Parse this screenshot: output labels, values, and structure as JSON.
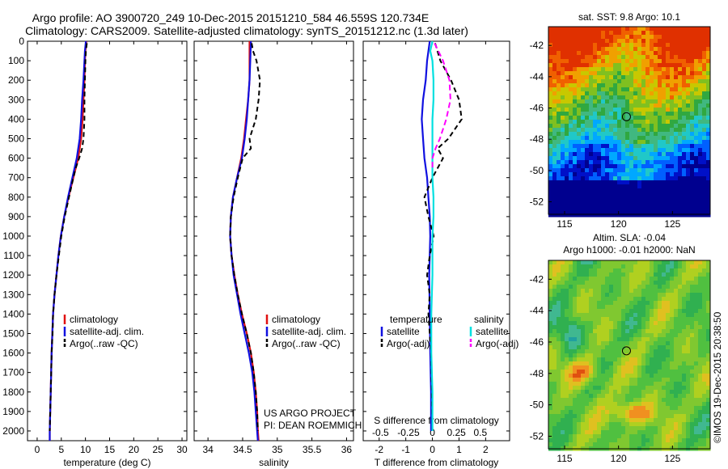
{
  "header": {
    "line1": "Argo profile: AO 3900720_249 10-Dec-2015 20151210_584 46.559S 120.734E",
    "line2": "Climatology: CARS2009. Satellite-adjusted climatology: synTS_20151212.nc (1.3d later)"
  },
  "watermark": "©IMOS 19-Dec-2015 20:38:50",
  "project": {
    "line1": "US ARGO PROJECT",
    "line2": "PI: DEAN ROEMMICH"
  },
  "colors": {
    "climatology": "#e01010",
    "satellite": "#1010e0",
    "argo": "#000000",
    "sat_salinity": "#00e0e0",
    "argo_salinity": "#ff00ff"
  },
  "chart_data": [
    {
      "type": "line",
      "xlabel": "temperature (deg C)",
      "ylabel": "",
      "xlim": [
        -2,
        31
      ],
      "ylim": [
        2050,
        0
      ],
      "xticks": [
        0,
        5,
        10,
        15,
        20,
        25,
        30
      ],
      "yticks": [
        0,
        100,
        200,
        300,
        400,
        500,
        600,
        700,
        800,
        900,
        1000,
        1100,
        1200,
        1300,
        1400,
        1500,
        1600,
        1700,
        1800,
        1900,
        2000
      ],
      "legend_position": "lower-middle",
      "series": [
        {
          "name": "climatology",
          "color": "#e01010",
          "style": "solid",
          "depth": [
            0,
            50,
            100,
            200,
            300,
            400,
            500,
            600,
            700,
            800,
            900,
            1000,
            1100,
            1200,
            1300,
            1400,
            1600,
            1800,
            2000,
            2050
          ],
          "values": [
            10.2,
            10.0,
            9.9,
            9.8,
            9.6,
            9.4,
            9.1,
            8.5,
            7.5,
            6.5,
            5.6,
            4.9,
            4.4,
            4.0,
            3.6,
            3.3,
            3.0,
            2.8,
            2.6,
            2.6
          ]
        },
        {
          "name": "satellite-adj. clim.",
          "color": "#1010e0",
          "style": "solid",
          "depth": [
            0,
            50,
            100,
            200,
            300,
            400,
            500,
            600,
            700,
            800,
            900,
            1000,
            1100,
            1200,
            1300,
            1400,
            1600,
            1800,
            2000,
            2050
          ],
          "values": [
            10.1,
            9.9,
            9.8,
            9.6,
            9.3,
            9.1,
            8.8,
            8.2,
            7.3,
            6.4,
            5.6,
            4.9,
            4.4,
            4.0,
            3.6,
            3.3,
            3.0,
            2.8,
            2.6,
            2.6
          ]
        },
        {
          "name": "Argo(..raw -QC)",
          "color": "#000000",
          "style": "dashed",
          "depth": [
            10,
            50,
            100,
            200,
            300,
            400,
            500,
            550,
            600,
            650,
            700,
            800,
            900,
            1000,
            1100,
            1200,
            1300,
            1400,
            1500,
            1600,
            1700,
            1800,
            1900,
            2000
          ],
          "values": [
            10.3,
            10.1,
            10.0,
            9.9,
            9.8,
            9.8,
            9.6,
            9.3,
            8.7,
            8.0,
            7.5,
            6.6,
            5.7,
            5.0,
            4.5,
            4.0,
            3.6,
            3.3,
            3.2,
            3.0,
            2.9,
            2.8,
            2.7,
            2.6
          ]
        }
      ]
    },
    {
      "type": "line",
      "xlabel": "salinity",
      "ylabel": "",
      "xlim": [
        33.8,
        36.1
      ],
      "ylim": [
        2050,
        0
      ],
      "xticks": [
        34,
        34.5,
        35,
        35.5,
        36
      ],
      "legend_position": "lower-middle",
      "series": [
        {
          "name": "climatology",
          "color": "#e01010",
          "style": "solid",
          "depth": [
            0,
            100,
            200,
            300,
            400,
            500,
            600,
            700,
            800,
            900,
            1000,
            1100,
            1200,
            1300,
            1400,
            1500,
            1600,
            1700,
            1800,
            1900,
            2000,
            2050
          ],
          "values": [
            34.6,
            34.6,
            34.6,
            34.58,
            34.55,
            34.52,
            34.48,
            34.42,
            34.36,
            34.33,
            34.32,
            34.34,
            34.38,
            34.43,
            34.49,
            34.56,
            34.62,
            34.66,
            34.69,
            34.71,
            34.72,
            34.73
          ]
        },
        {
          "name": "satellite-adj. clim.",
          "color": "#1010e0",
          "style": "solid",
          "depth": [
            0,
            100,
            200,
            300,
            400,
            500,
            600,
            700,
            800,
            900,
            1000,
            1100,
            1200,
            1300,
            1400,
            1500,
            1600,
            1700,
            1800,
            1900,
            2000,
            2050
          ],
          "values": [
            34.62,
            34.61,
            34.6,
            34.58,
            34.56,
            34.53,
            34.49,
            34.42,
            34.36,
            34.33,
            34.32,
            34.34,
            34.37,
            34.42,
            34.47,
            34.53,
            34.59,
            34.64,
            34.67,
            34.69,
            34.71,
            34.72
          ]
        },
        {
          "name": "Argo(..raw -QC)",
          "color": "#000000",
          "style": "dashed",
          "depth": [
            10,
            50,
            100,
            200,
            300,
            400,
            500,
            550,
            600,
            700,
            800,
            900,
            1000,
            1100,
            1200,
            1300,
            1400,
            1500,
            1600,
            1700,
            1800,
            1900,
            2000
          ],
          "values": [
            34.63,
            34.65,
            34.7,
            34.75,
            34.73,
            34.69,
            34.6,
            34.62,
            34.5,
            34.43,
            34.37,
            34.33,
            34.32,
            34.34,
            34.38,
            34.43,
            34.49,
            34.56,
            34.62,
            34.66,
            34.69,
            34.71,
            34.72
          ]
        }
      ]
    },
    {
      "type": "line",
      "xlabel": "T difference from climatology",
      "xlabel_top": "S difference from climatology",
      "ylabel": "",
      "xlim": [
        -2.6,
        2.9
      ],
      "ylim": [
        2050,
        0
      ],
      "xticks": [
        -2,
        -1,
        0,
        1,
        2
      ],
      "xticks_top": [
        -0.5,
        -0.25,
        0,
        0.25,
        0.5
      ],
      "legend_position": "lower-middle",
      "legend_groups": [
        "temperature",
        "salinity"
      ],
      "series": [
        {
          "name": "satellite",
          "group": "temperature",
          "color": "#1010e0",
          "style": "solid",
          "depth": [
            0,
            100,
            200,
            300,
            400,
            500,
            600,
            700,
            800,
            900,
            1000,
            1200,
            1400,
            1600,
            1800,
            2000
          ],
          "values": [
            -0.1,
            -0.2,
            -0.25,
            -0.35,
            -0.4,
            -0.35,
            -0.3,
            -0.2,
            -0.15,
            -0.1,
            -0.08,
            -0.12,
            -0.1,
            -0.08,
            -0.05,
            -0.05
          ]
        },
        {
          "name": "Argo(-adj)",
          "group": "temperature",
          "color": "#000000",
          "style": "dashed",
          "depth": [
            10,
            100,
            200,
            300,
            400,
            500,
            550,
            600,
            700,
            800,
            900,
            1000,
            1100,
            1200,
            1300,
            1400,
            1500,
            1600,
            1800,
            2000
          ],
          "values": [
            0.1,
            0.3,
            0.7,
            1.0,
            1.1,
            0.6,
            0.2,
            0.4,
            0.0,
            -0.3,
            -0.15,
            0.05,
            -0.1,
            -0.2,
            -0.1,
            -0.15,
            -0.1,
            -0.05,
            -0.02,
            0.0
          ]
        },
        {
          "name": "satellite",
          "group": "salinity",
          "color": "#00e0e0",
          "style": "solid",
          "depth": [
            0,
            50,
            100,
            200,
            300,
            400,
            500,
            600,
            700,
            800,
            900,
            1000,
            1200,
            1400,
            1600,
            1800,
            2000
          ],
          "values": [
            0.0,
            -0.02,
            0.0,
            0.01,
            0.01,
            0.0,
            0.0,
            0.0,
            0.0,
            0.01,
            0.01,
            0.0,
            0.0,
            -0.01,
            -0.01,
            0.0,
            0.0
          ]
        },
        {
          "name": "Argo(-adj)",
          "group": "salinity",
          "color": "#ff00ff",
          "style": "dashed",
          "depth": [
            10,
            100,
            200,
            300,
            400,
            500,
            550,
            600,
            650
          ],
          "values": [
            0.02,
            0.1,
            0.16,
            0.17,
            0.13,
            0.07,
            0.03,
            0.0,
            0.0
          ]
        }
      ]
    },
    {
      "type": "heatmap",
      "title": "sat. SST: 9.8 Argo: 10.1",
      "xlim": [
        113.5,
        128.5
      ],
      "ylim": [
        -52.8,
        -40.8
      ],
      "xticks": [
        115,
        120,
        125
      ],
      "yticks": [
        -42,
        -44,
        -46,
        -48,
        -50,
        -52
      ],
      "marker": {
        "lon": 120.734,
        "lat": -46.559
      }
    },
    {
      "type": "heatmap",
      "title": "Altim. SLA: -0.04",
      "subtitle": "Argo h1000: -0.01 h2000: NaN",
      "xlim": [
        113.5,
        128.5
      ],
      "ylim": [
        -52.8,
        -40.8
      ],
      "xticks": [
        115,
        120,
        125
      ],
      "yticks": [
        -42,
        -44,
        -46,
        -48,
        -50,
        -52
      ],
      "marker": {
        "lon": 120.734,
        "lat": -46.559
      }
    }
  ]
}
